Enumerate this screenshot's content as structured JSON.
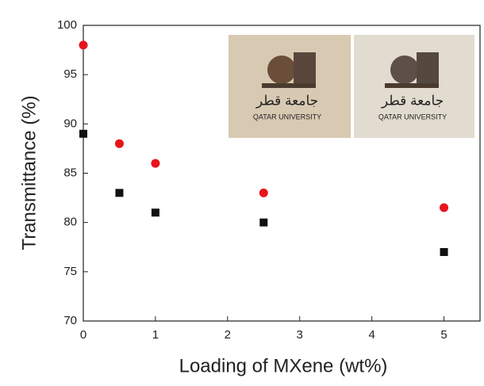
{
  "chart_data": {
    "type": "scatter",
    "x_label": "Loading of MXene (wt%)",
    "y_label": "Transmittance (%)",
    "xlim": [
      0,
      5.5
    ],
    "xticks": [
      0,
      1,
      2,
      3,
      4,
      5
    ],
    "ylim": [
      70,
      100
    ],
    "yticks": [
      70,
      75,
      80,
      85,
      90,
      95,
      100
    ],
    "series": [
      {
        "color": "#e8141c",
        "marker": "circle",
        "x": [
          0,
          0.5,
          1,
          2.5,
          5
        ],
        "values": [
          98,
          88,
          86,
          83,
          81.5
        ]
      },
      {
        "color": "#111111",
        "marker": "square",
        "x": [
          0,
          0.5,
          1,
          2.5,
          5
        ],
        "values": [
          89,
          83,
          81,
          80,
          77
        ]
      }
    ],
    "inset": {
      "arabic": "جامعة قطر",
      "english": "QATAR UNIVERSITY"
    }
  }
}
